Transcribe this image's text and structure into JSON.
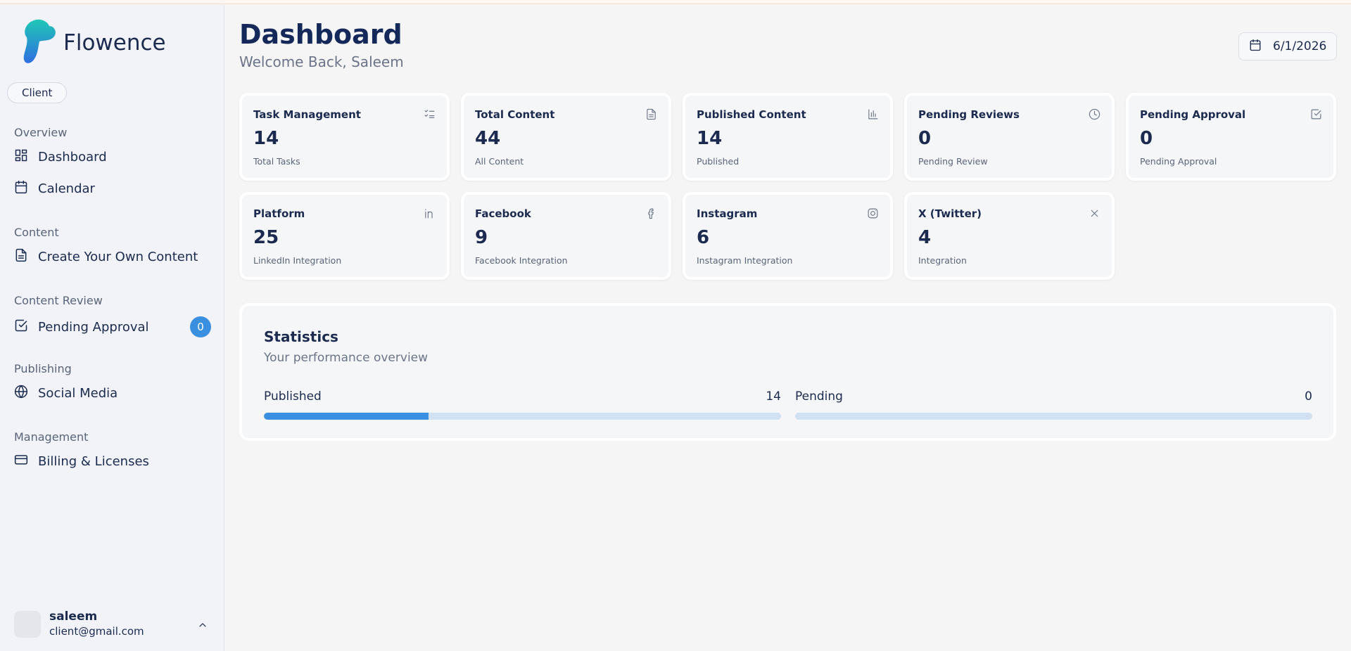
{
  "sidebar": {
    "brand": "Flowence",
    "role": "Client",
    "sections": [
      {
        "title": "Overview",
        "items": [
          {
            "label": "Dashboard"
          },
          {
            "label": "Calendar"
          }
        ]
      },
      {
        "title": "Content",
        "items": [
          {
            "label": "Create Your Own Content"
          }
        ]
      },
      {
        "title": "Content Review",
        "items": [
          {
            "label": "Pending Approval",
            "badge": 0
          }
        ]
      },
      {
        "title": "Publishing",
        "items": [
          {
            "label": "Social Media"
          }
        ]
      },
      {
        "title": "Management",
        "items": [
          {
            "label": "Billing & Licenses"
          }
        ]
      }
    ],
    "user": {
      "name": "saleem",
      "email": "client@gmail.com"
    }
  },
  "header": {
    "title": "Dashboard",
    "subtitle": "Welcome Back, Saleem",
    "date": "6/1/2026"
  },
  "cards": [
    {
      "title": "Task Management",
      "value": 14,
      "caption": "Total Tasks"
    },
    {
      "title": "Total Content",
      "value": 44,
      "caption": "All Content"
    },
    {
      "title": "Published Content",
      "value": 14,
      "caption": "Published"
    },
    {
      "title": "Pending Reviews",
      "value": 0,
      "caption": "Pending Review"
    },
    {
      "title": "Pending Approval",
      "value": 0,
      "caption": "Pending Approval"
    },
    {
      "title": "Platform",
      "value": 25,
      "caption": "LinkedIn Integration"
    },
    {
      "title": "Facebook",
      "value": 9,
      "caption": "Facebook Integration"
    },
    {
      "title": "Instagram",
      "value": 6,
      "caption": "Instagram Integration"
    },
    {
      "title": "X (Twitter)",
      "value": 4,
      "caption": "Integration"
    }
  ],
  "statistics": {
    "title": "Statistics",
    "subtitle": "Your performance overview",
    "bars": [
      {
        "label": "Published",
        "value": 14
      },
      {
        "label": "Pending",
        "value": 0
      }
    ]
  }
}
